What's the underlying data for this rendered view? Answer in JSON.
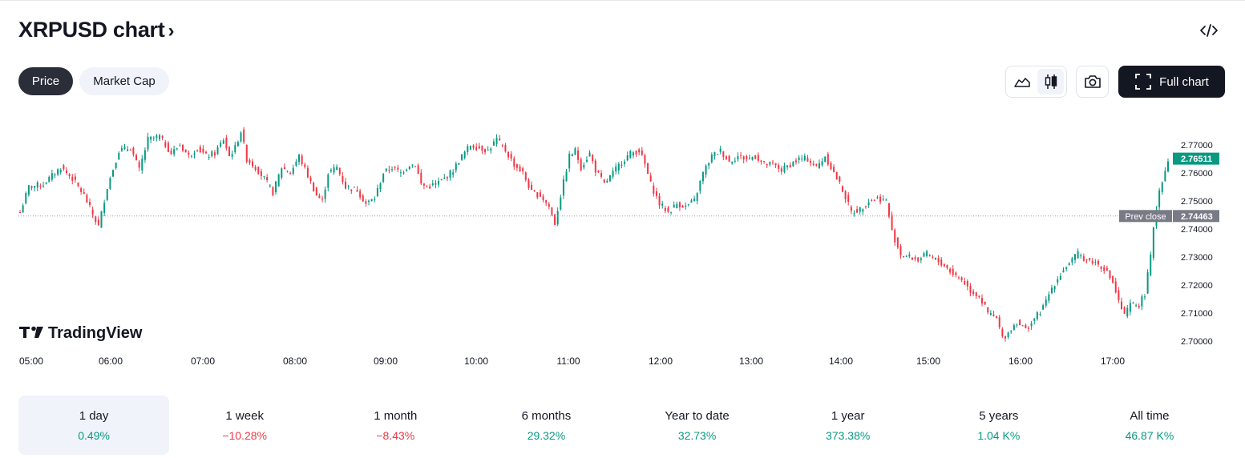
{
  "header": {
    "title": "XRPUSD chart",
    "title_chevron": "›",
    "embed_icon": "code-icon"
  },
  "tabs": [
    {
      "label": "Price",
      "active": true
    },
    {
      "label": "Market Cap",
      "active": false
    }
  ],
  "toolbar": {
    "area_icon": "area-chart-icon",
    "candles_icon": "candlestick-icon",
    "camera_icon": "camera-icon",
    "full_chart_label": "Full chart",
    "fullscreen_icon": "fullscreen-icon"
  },
  "brand": {
    "name": "TradingView",
    "logo_icon": "tradingview-logo-icon"
  },
  "colors": {
    "up": "#089981",
    "down": "#f23645",
    "label_current": "#089981",
    "label_prev": "#787b86"
  },
  "chart_data": {
    "type": "candlestick",
    "symbol": "XRPUSD",
    "y_range": [
      2.6982,
      2.7765
    ],
    "y_ticks": [
      "2.77000",
      "2.76000",
      "2.75000",
      "2.74000",
      "2.73000",
      "2.72000",
      "2.71000",
      "2.70000"
    ],
    "x_ticks": [
      "05:00",
      "06:00",
      "07:00",
      "08:00",
      "09:00",
      "10:00",
      "11:00",
      "12:00",
      "13:00",
      "14:00",
      "15:00",
      "16:00",
      "17:00"
    ],
    "current_price": "2.76511",
    "prev_close": {
      "label": "Prev close",
      "value": "2.74463"
    },
    "price_path": [
      [
        0,
        2.746
      ],
      [
        3,
        2.755
      ],
      [
        8,
        2.756
      ],
      [
        14,
        2.762
      ],
      [
        18,
        2.758
      ],
      [
        22,
        2.752
      ],
      [
        26,
        2.743
      ],
      [
        27,
        2.741
      ],
      [
        30,
        2.755
      ],
      [
        34,
        2.768
      ],
      [
        38,
        2.769
      ],
      [
        41,
        2.761
      ],
      [
        44,
        2.772
      ],
      [
        48,
        2.773
      ],
      [
        52,
        2.767
      ],
      [
        55,
        2.77
      ],
      [
        58,
        2.766
      ],
      [
        61,
        2.769
      ],
      [
        64,
        2.766
      ],
      [
        67,
        2.767
      ],
      [
        70,
        2.772
      ],
      [
        72,
        2.766
      ],
      [
        74,
        2.769
      ],
      [
        76,
        2.775
      ],
      [
        78,
        2.765
      ],
      [
        81,
        2.762
      ],
      [
        84,
        2.758
      ],
      [
        87,
        2.753
      ],
      [
        90,
        2.762
      ],
      [
        93,
        2.76
      ],
      [
        96,
        2.766
      ],
      [
        99,
        2.759
      ],
      [
        102,
        2.752
      ],
      [
        104,
        2.75
      ],
      [
        106,
        2.76
      ],
      [
        109,
        2.762
      ],
      [
        112,
        2.755
      ],
      [
        116,
        2.754
      ],
      [
        119,
        2.749
      ],
      [
        122,
        2.751
      ],
      [
        125,
        2.76
      ],
      [
        128,
        2.762
      ],
      [
        131,
        2.76
      ],
      [
        134,
        2.763
      ],
      [
        136,
        2.763
      ],
      [
        138,
        2.756
      ],
      [
        140,
        2.755
      ],
      [
        143,
        2.756
      ],
      [
        146,
        2.758
      ],
      [
        149,
        2.761
      ],
      [
        152,
        2.766
      ],
      [
        155,
        2.77
      ],
      [
        158,
        2.769
      ],
      [
        161,
        2.768
      ],
      [
        164,
        2.772
      ],
      [
        167,
        2.768
      ],
      [
        170,
        2.763
      ],
      [
        173,
        2.76
      ],
      [
        176,
        2.753
      ],
      [
        179,
        2.752
      ],
      [
        182,
        2.748
      ],
      [
        184,
        2.742
      ],
      [
        186,
        2.752
      ],
      [
        189,
        2.766
      ],
      [
        191,
        2.768
      ],
      [
        193,
        2.762
      ],
      [
        196,
        2.767
      ],
      [
        198,
        2.761
      ],
      [
        201,
        2.756
      ],
      [
        204,
        2.76
      ],
      [
        207,
        2.764
      ],
      [
        210,
        2.767
      ],
      [
        213,
        2.768
      ],
      [
        215,
        2.763
      ],
      [
        217,
        2.756
      ],
      [
        220,
        2.749
      ],
      [
        223,
        2.746
      ],
      [
        226,
        2.749
      ],
      [
        229,
        2.748
      ],
      [
        232,
        2.75
      ],
      [
        235,
        2.76
      ],
      [
        238,
        2.766
      ],
      [
        241,
        2.768
      ],
      [
        244,
        2.764
      ],
      [
        247,
        2.766
      ],
      [
        250,
        2.765
      ],
      [
        253,
        2.766
      ],
      [
        256,
        2.763
      ],
      [
        259,
        2.763
      ],
      [
        262,
        2.761
      ],
      [
        265,
        2.763
      ],
      [
        268,
        2.765
      ],
      [
        271,
        2.765
      ],
      [
        274,
        2.762
      ],
      [
        277,
        2.766
      ],
      [
        280,
        2.76
      ],
      [
        283,
        2.754
      ],
      [
        286,
        2.746
      ],
      [
        289,
        2.747
      ],
      [
        292,
        2.75
      ],
      [
        295,
        2.751
      ],
      [
        298,
        2.75
      ],
      [
        300,
        2.739
      ],
      [
        303,
        2.731
      ],
      [
        306,
        2.73
      ],
      [
        309,
        2.729
      ],
      [
        312,
        2.731
      ],
      [
        315,
        2.729
      ],
      [
        318,
        2.727
      ],
      [
        321,
        2.724
      ],
      [
        324,
        2.722
      ],
      [
        327,
        2.718
      ],
      [
        330,
        2.716
      ],
      [
        333,
        2.71
      ],
      [
        336,
        2.708
      ],
      [
        338,
        2.701
      ],
      [
        340,
        2.703
      ],
      [
        343,
        2.707
      ],
      [
        346,
        2.704
      ],
      [
        349,
        2.708
      ],
      [
        352,
        2.712
      ],
      [
        355,
        2.719
      ],
      [
        358,
        2.724
      ],
      [
        361,
        2.728
      ],
      [
        364,
        2.731
      ],
      [
        367,
        2.729
      ],
      [
        370,
        2.728
      ],
      [
        373,
        2.726
      ],
      [
        376,
        2.721
      ],
      [
        378,
        2.714
      ],
      [
        380,
        2.709
      ],
      [
        382,
        2.713
      ],
      [
        385,
        2.713
      ],
      [
        387,
        2.717
      ],
      [
        389,
        2.73
      ],
      [
        390,
        2.741
      ],
      [
        392,
        2.754
      ],
      [
        394,
        2.761
      ],
      [
        395,
        2.765
      ]
    ]
  },
  "timeframes": [
    {
      "label": "1 day",
      "value": "0.49%",
      "sign": "pos",
      "active": true
    },
    {
      "label": "1 week",
      "value": "−10.28%",
      "sign": "neg",
      "active": false
    },
    {
      "label": "1 month",
      "value": "−8.43%",
      "sign": "neg",
      "active": false
    },
    {
      "label": "6 months",
      "value": "29.32%",
      "sign": "pos",
      "active": false
    },
    {
      "label": "Year to date",
      "value": "32.73%",
      "sign": "pos",
      "active": false
    },
    {
      "label": "1 year",
      "value": "373.38%",
      "sign": "pos",
      "active": false
    },
    {
      "label": "5 years",
      "value": "1.04 K%",
      "sign": "pos",
      "active": false
    },
    {
      "label": "All time",
      "value": "46.87 K%",
      "sign": "pos",
      "active": false
    }
  ]
}
